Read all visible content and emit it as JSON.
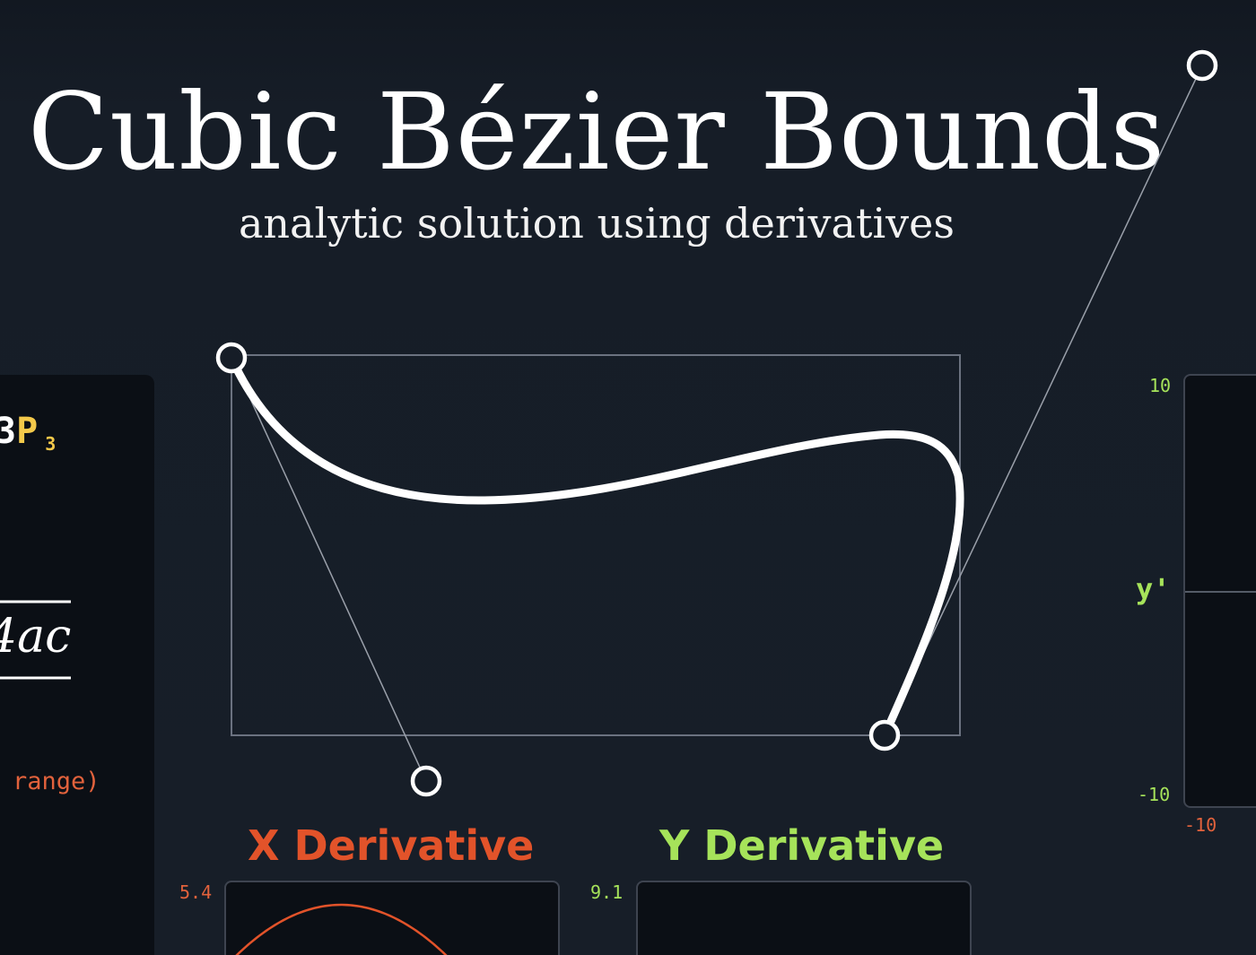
{
  "header": {
    "title": "Cubic Bézier Bounds",
    "subtitle": "analytic solution using derivatives"
  },
  "left_panel": {
    "formula_coefficient": "3",
    "formula_point": "P",
    "formula_subscript": "3",
    "formula_discriminant_tail": "4ac",
    "code_fragment": "range)"
  },
  "derivatives": {
    "x": {
      "title": "X Derivative",
      "max_tick": "5.4"
    },
    "y": {
      "title": "Y Derivative",
      "max_tick": "9.1"
    }
  },
  "right_panel": {
    "axis_label": "y'",
    "top_tick": "10",
    "bottom_tick": "-10",
    "min_tick": "-10"
  },
  "bezier": {
    "points": [
      {
        "name": "P0",
        "role": "anchor"
      },
      {
        "name": "P1",
        "role": "control"
      },
      {
        "name": "P2",
        "role": "control"
      },
      {
        "name": "P3",
        "role": "anchor"
      }
    ]
  },
  "colors": {
    "background": "#161d27",
    "panel": "#0b0f15",
    "curve": "#ffffff",
    "bounds_box": "#6b7280",
    "x_accent": "#e2532a",
    "y_accent": "#a6e35a",
    "formula_accent": "#f4c94a"
  }
}
